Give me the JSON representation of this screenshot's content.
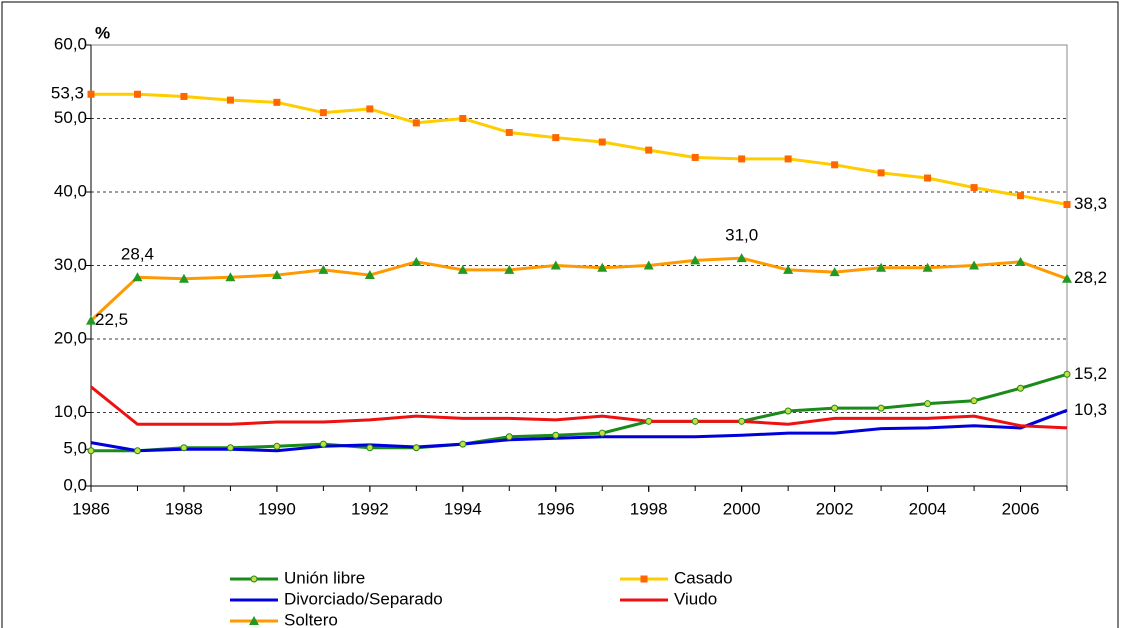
{
  "chart_data": {
    "type": "line",
    "y_label": "%",
    "x": [
      1986,
      1987,
      1988,
      1989,
      1990,
      1991,
      1992,
      1993,
      1994,
      1995,
      1996,
      1997,
      1998,
      1999,
      2000,
      2001,
      2002,
      2003,
      2004,
      2005,
      2006,
      2007
    ],
    "xlim": [
      1986,
      2007
    ],
    "xticks": [
      1986,
      1988,
      1990,
      1992,
      1994,
      1996,
      1998,
      2000,
      2002,
      2004,
      2006
    ],
    "ylim": [
      0,
      60
    ],
    "yticks": [
      {
        "value": 0,
        "label": "0,0"
      },
      {
        "value": 5,
        "label": "5,0"
      },
      {
        "value": 10,
        "label": "10,0"
      },
      {
        "value": 20,
        "label": "20,0"
      },
      {
        "value": 30,
        "label": "30,0"
      },
      {
        "value": 40,
        "label": "40,0"
      },
      {
        "value": 50,
        "label": "50,0"
      },
      {
        "value": 60,
        "label": "60,0"
      }
    ],
    "grid": true,
    "legend": "bottom",
    "series": [
      {
        "name": "Unión libre",
        "color": "#1a8a1a",
        "marker": "circle",
        "marker_color": "#ccdd44",
        "values": [
          4.8,
          4.8,
          5.2,
          5.2,
          5.4,
          5.7,
          5.2,
          5.2,
          5.7,
          6.7,
          6.9,
          7.2,
          8.8,
          8.8,
          8.8,
          10.2,
          10.6,
          10.6,
          11.2,
          11.6,
          13.3,
          15.2
        ],
        "value_labels": [
          null,
          null,
          null,
          null,
          null,
          null,
          null,
          null,
          null,
          null,
          null,
          null,
          null,
          null,
          null,
          null,
          null,
          null,
          null,
          null,
          null,
          "15,2"
        ]
      },
      {
        "name": "Casado",
        "color": "#ffcc00",
        "marker": "square",
        "marker_color": "#ff6600",
        "values": [
          53.3,
          53.3,
          53.0,
          52.5,
          52.2,
          50.8,
          51.3,
          49.4,
          50.0,
          48.1,
          47.4,
          46.8,
          45.7,
          44.7,
          44.5,
          44.5,
          43.7,
          42.6,
          41.9,
          40.6,
          39.5,
          38.3
        ],
        "value_labels": [
          "53,3",
          null,
          null,
          null,
          null,
          null,
          null,
          null,
          null,
          null,
          null,
          null,
          null,
          null,
          null,
          null,
          null,
          null,
          null,
          null,
          null,
          "38,3"
        ]
      },
      {
        "name": "Divorciado/Separado",
        "color": "#0000dd",
        "marker": null,
        "marker_color": null,
        "values": [
          5.9,
          4.8,
          5.0,
          5.0,
          4.8,
          5.4,
          5.6,
          5.3,
          5.7,
          6.3,
          6.5,
          6.7,
          6.7,
          6.7,
          6.9,
          7.2,
          7.2,
          7.8,
          7.9,
          8.2,
          7.9,
          10.3
        ],
        "value_labels": [
          null,
          null,
          null,
          null,
          null,
          null,
          null,
          null,
          null,
          null,
          null,
          null,
          null,
          null,
          null,
          null,
          null,
          null,
          null,
          null,
          null,
          "10,3"
        ]
      },
      {
        "name": "Viudo",
        "color": "#ee1111",
        "marker": null,
        "marker_color": null,
        "values": [
          13.5,
          8.4,
          8.4,
          8.4,
          8.7,
          8.7,
          9.0,
          9.5,
          9.2,
          9.2,
          9.0,
          9.5,
          8.8,
          8.8,
          8.8,
          8.4,
          9.2,
          9.2,
          9.2,
          9.5,
          8.2,
          7.9
        ],
        "value_labels": [
          null,
          null,
          null,
          null,
          null,
          null,
          null,
          null,
          null,
          null,
          null,
          null,
          null,
          null,
          null,
          null,
          null,
          null,
          null,
          null,
          null,
          null
        ]
      },
      {
        "name": "Soltero",
        "color": "#ff9900",
        "marker": "triangle",
        "marker_color": "#229922",
        "values": [
          22.5,
          28.4,
          28.2,
          28.4,
          28.7,
          29.4,
          28.7,
          30.5,
          29.4,
          29.4,
          30.0,
          29.7,
          30.0,
          30.7,
          31.0,
          29.4,
          29.1,
          29.7,
          29.7,
          30.0,
          30.5,
          28.2
        ],
        "value_labels": [
          "22,5",
          "28,4",
          null,
          null,
          null,
          null,
          null,
          null,
          null,
          null,
          null,
          null,
          null,
          null,
          "31,0",
          null,
          null,
          null,
          null,
          null,
          null,
          "28,2"
        ]
      }
    ]
  }
}
